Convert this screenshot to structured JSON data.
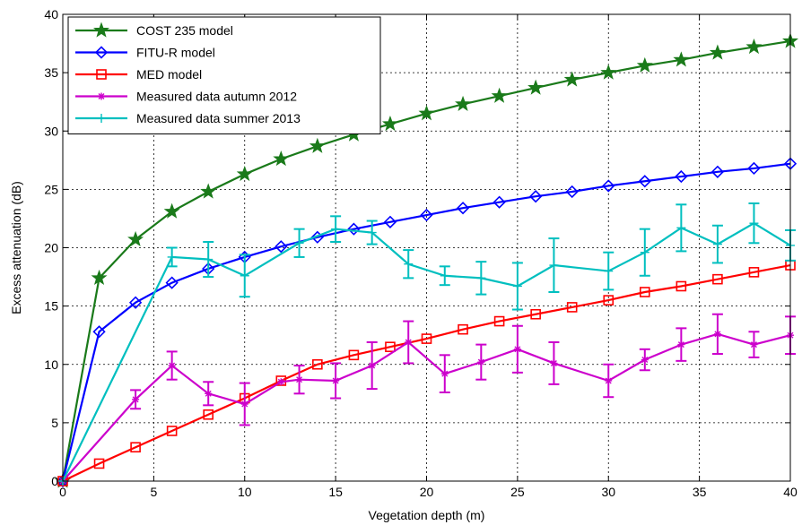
{
  "chart_data": {
    "type": "line",
    "xlabel": "Vegetation depth (m)",
    "ylabel": "Excess attenuation (dB)",
    "xlim": [
      0,
      40
    ],
    "ylim": [
      0,
      40
    ],
    "xticks": [
      0,
      5,
      10,
      15,
      20,
      25,
      30,
      35,
      40
    ],
    "yticks": [
      0,
      5,
      10,
      15,
      20,
      25,
      30,
      35,
      40
    ],
    "grid": "on",
    "legend_position": "top-left",
    "series": [
      {
        "name": "COST 235 model",
        "color": "#1a7a1a",
        "marker": "star",
        "x": [
          0,
          2,
          4,
          6,
          8,
          10,
          12,
          14,
          16,
          18,
          20,
          22,
          24,
          26,
          28,
          30,
          32,
          34,
          36,
          38,
          40
        ],
        "y": [
          0,
          17.4,
          20.7,
          23.1,
          24.8,
          26.3,
          27.6,
          28.7,
          29.7,
          30.6,
          31.5,
          32.3,
          33.0,
          33.7,
          34.4,
          35.0,
          35.6,
          36.1,
          36.7,
          37.2,
          37.7
        ]
      },
      {
        "name": "FITU-R model",
        "color": "#0000ff",
        "marker": "diamond",
        "x": [
          0,
          2,
          4,
          6,
          8,
          10,
          12,
          14,
          16,
          18,
          20,
          22,
          24,
          26,
          28,
          30,
          32,
          34,
          36,
          38,
          40
        ],
        "y": [
          0,
          12.8,
          15.3,
          17.0,
          18.2,
          19.2,
          20.1,
          20.9,
          21.6,
          22.2,
          22.8,
          23.4,
          23.9,
          24.4,
          24.8,
          25.3,
          25.7,
          26.1,
          26.5,
          26.8,
          27.2
        ]
      },
      {
        "name": "MED model",
        "color": "#ff0000",
        "marker": "square",
        "x": [
          0,
          2,
          4,
          6,
          8,
          10,
          12,
          14,
          16,
          18,
          20,
          22,
          24,
          26,
          28,
          30,
          32,
          34,
          36,
          38,
          40
        ],
        "y": [
          0,
          1.5,
          2.9,
          4.3,
          5.7,
          7.1,
          8.6,
          10.0,
          10.8,
          11.5,
          12.2,
          13.0,
          13.7,
          14.3,
          14.9,
          15.5,
          16.2,
          16.7,
          17.3,
          17.9,
          18.5
        ]
      },
      {
        "name": "Measured data autumn 2012",
        "color": "#cc00cc",
        "marker": "asterisk",
        "x": [
          0,
          4,
          6,
          8,
          10,
          12,
          13,
          15,
          17,
          19,
          21,
          23,
          25,
          27,
          30,
          32,
          34,
          36,
          38,
          40
        ],
        "y": [
          0,
          7.0,
          9.9,
          7.5,
          6.6,
          8.5,
          8.7,
          8.6,
          9.9,
          11.9,
          9.2,
          10.2,
          11.3,
          10.1,
          8.6,
          10.4,
          11.7,
          12.6,
          11.7,
          12.5
        ],
        "err": [
          0,
          0.8,
          1.2,
          1.0,
          1.8,
          0,
          1.2,
          1.5,
          2.0,
          1.8,
          1.6,
          1.5,
          2.0,
          1.8,
          1.4,
          0.9,
          1.4,
          1.7,
          1.1,
          1.6
        ]
      },
      {
        "name": "Measured data summer 2013",
        "color": "#00bfbf",
        "marker": "plus",
        "x": [
          0,
          6,
          8,
          10,
          13,
          15,
          17,
          19,
          21,
          23,
          25,
          27,
          30,
          32,
          34,
          36,
          38,
          40
        ],
        "y": [
          0,
          19.2,
          19.0,
          17.6,
          20.4,
          21.6,
          21.3,
          18.6,
          17.6,
          17.4,
          16.7,
          18.5,
          18.0,
          19.6,
          21.7,
          20.3,
          22.1,
          20.2
        ],
        "err": [
          0,
          0.8,
          1.5,
          1.8,
          1.2,
          1.1,
          1.0,
          1.2,
          0.8,
          1.4,
          2.0,
          2.3,
          1.6,
          2.0,
          2.0,
          1.6,
          1.7,
          1.3
        ]
      }
    ]
  }
}
